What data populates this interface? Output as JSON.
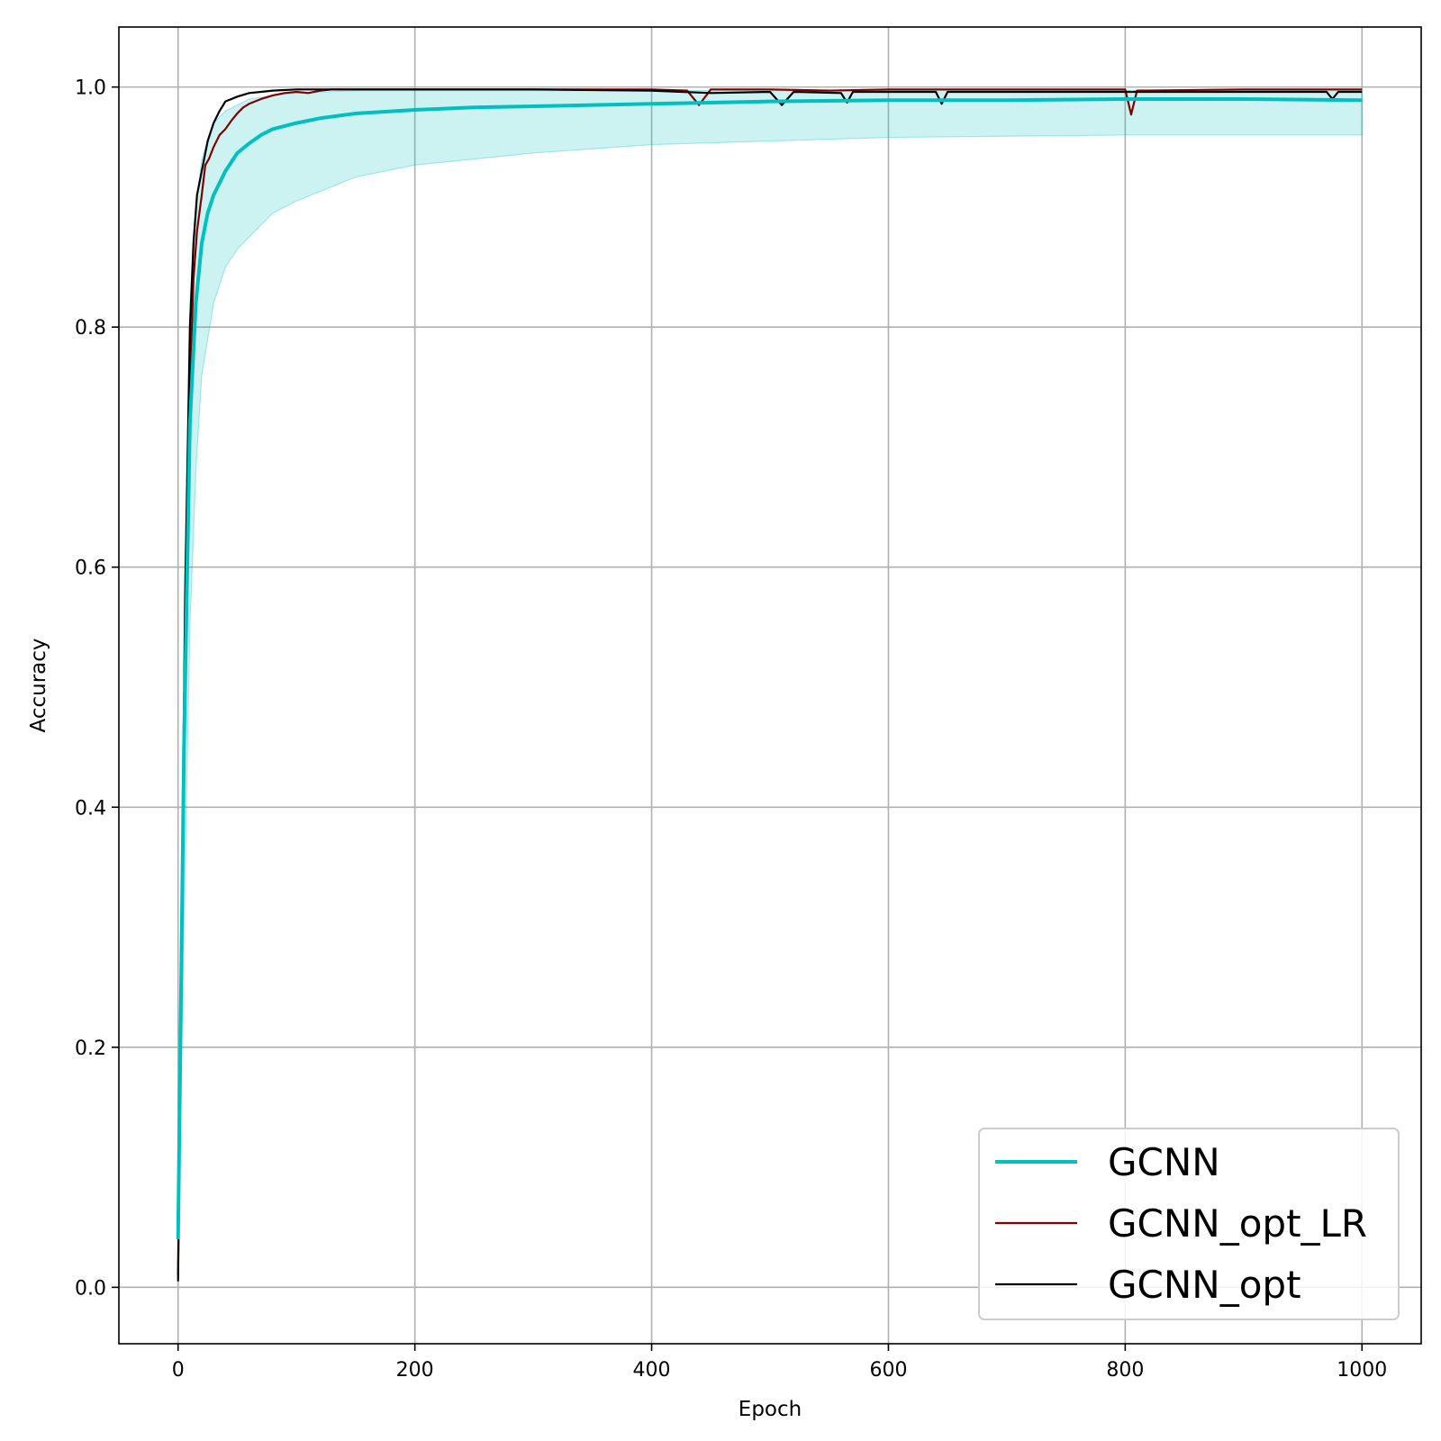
{
  "chart_data": {
    "type": "line",
    "xlabel": "Epoch",
    "ylabel": "Accuracy",
    "xlim": [
      -50,
      1050
    ],
    "ylim": [
      -0.047,
      1.05
    ],
    "x_ticks": [
      0,
      200,
      400,
      600,
      800,
      1000
    ],
    "x_tick_labels": [
      "0",
      "200",
      "400",
      "600",
      "800",
      "1000"
    ],
    "y_ticks": [
      0.0,
      0.2,
      0.4,
      0.6,
      0.8,
      1.0
    ],
    "y_tick_labels": [
      "0.0",
      "0.2",
      "0.4",
      "0.6",
      "0.8",
      "1.0"
    ],
    "grid": true,
    "legend_position": "lower-right",
    "band": {
      "series": "GCNN",
      "color": "#00bfbf",
      "x": [
        0,
        5,
        10,
        15,
        20,
        30,
        40,
        50,
        60,
        80,
        100,
        150,
        200,
        300,
        400,
        500,
        600,
        700,
        800,
        900,
        1000
      ],
      "lower": [
        0.04,
        0.3,
        0.55,
        0.68,
        0.76,
        0.82,
        0.85,
        0.865,
        0.875,
        0.895,
        0.905,
        0.925,
        0.935,
        0.945,
        0.952,
        0.955,
        0.958,
        0.959,
        0.96,
        0.96,
        0.96
      ],
      "upper": [
        0.04,
        0.55,
        0.82,
        0.9,
        0.94,
        0.97,
        0.98,
        0.985,
        0.99,
        0.993,
        0.995,
        0.997,
        0.997,
        0.997,
        0.997,
        0.997,
        0.997,
        0.997,
        0.997,
        0.997,
        0.997
      ]
    },
    "series": [
      {
        "name": "GCNN",
        "color": "#00bfbf",
        "x": [
          0,
          5,
          10,
          15,
          20,
          25,
          30,
          40,
          50,
          60,
          70,
          80,
          100,
          120,
          150,
          200,
          250,
          300,
          400,
          500,
          600,
          700,
          800,
          900,
          1000
        ],
        "values": [
          0.04,
          0.45,
          0.72,
          0.82,
          0.87,
          0.895,
          0.91,
          0.93,
          0.945,
          0.953,
          0.96,
          0.965,
          0.97,
          0.974,
          0.978,
          0.981,
          0.983,
          0.984,
          0.986,
          0.988,
          0.989,
          0.989,
          0.99,
          0.99,
          0.989
        ]
      },
      {
        "name": "GCNN_opt_LR",
        "color": "#800000",
        "x": [
          0,
          3,
          6,
          10,
          13,
          16,
          20,
          23,
          26,
          30,
          35,
          40,
          45,
          50,
          55,
          60,
          70,
          80,
          90,
          100,
          110,
          120,
          130,
          150,
          200,
          250,
          300,
          350,
          400,
          430,
          440,
          450,
          500,
          550,
          600,
          700,
          800,
          805,
          810,
          900,
          1000
        ],
        "values": [
          0.01,
          0.3,
          0.55,
          0.75,
          0.84,
          0.88,
          0.91,
          0.935,
          0.94,
          0.95,
          0.96,
          0.965,
          0.972,
          0.978,
          0.983,
          0.986,
          0.99,
          0.993,
          0.995,
          0.996,
          0.995,
          0.997,
          0.998,
          0.998,
          0.998,
          0.998,
          0.998,
          0.998,
          0.998,
          0.997,
          0.985,
          0.998,
          0.998,
          0.997,
          0.998,
          0.998,
          0.998,
          0.977,
          0.997,
          0.998,
          0.998
        ]
      },
      {
        "name": "GCNN_opt",
        "color": "#000000",
        "x": [
          0,
          3,
          6,
          10,
          13,
          16,
          20,
          25,
          30,
          35,
          40,
          50,
          60,
          70,
          80,
          100,
          150,
          200,
          300,
          400,
          450,
          500,
          510,
          520,
          560,
          565,
          570,
          600,
          640,
          645,
          650,
          700,
          800,
          900,
          970,
          975,
          980,
          1000
        ],
        "values": [
          0.005,
          0.3,
          0.58,
          0.8,
          0.87,
          0.91,
          0.93,
          0.955,
          0.97,
          0.98,
          0.988,
          0.992,
          0.995,
          0.996,
          0.997,
          0.998,
          0.998,
          0.998,
          0.998,
          0.997,
          0.995,
          0.996,
          0.985,
          0.996,
          0.995,
          0.987,
          0.996,
          0.996,
          0.996,
          0.986,
          0.996,
          0.996,
          0.996,
          0.996,
          0.996,
          0.99,
          0.996,
          0.996
        ]
      }
    ]
  }
}
